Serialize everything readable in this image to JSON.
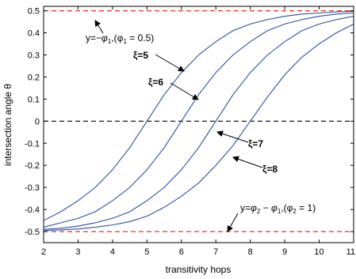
{
  "chart_data": {
    "type": "line",
    "xlabel": "transitivity hops",
    "ylabel": "intersection angle θ",
    "xlim": [
      2,
      11
    ],
    "ylim": [
      -0.55,
      0.52
    ],
    "xticks": [
      "2",
      "3",
      "4",
      "5",
      "6",
      "7",
      "8",
      "9",
      "10",
      "11"
    ],
    "yticks": [
      "0.5",
      "0.4",
      "0.3",
      "0.2",
      "0.1",
      "0",
      "-0.1",
      "-0.2",
      "-0.3",
      "-0.4",
      "-0.5"
    ],
    "grid": false,
    "line_color": "#2b4f9e",
    "series": [
      {
        "name": "ξ=5",
        "x": [
          2,
          2.5,
          3,
          3.5,
          4,
          4.5,
          5,
          5.5,
          6,
          6.5,
          7,
          7.5,
          8,
          8.5,
          9,
          9.5,
          10,
          10.5,
          11
        ],
        "y": [
          -0.45,
          -0.41,
          -0.36,
          -0.3,
          -0.22,
          -0.12,
          0.0,
          0.12,
          0.22,
          0.3,
          0.36,
          0.41,
          0.44,
          0.46,
          0.475,
          0.485,
          0.49,
          0.495,
          0.497
        ]
      },
      {
        "name": "ξ=6",
        "x": [
          2,
          2.5,
          3,
          3.5,
          4,
          4.5,
          5,
          5.5,
          6,
          6.5,
          7,
          7.5,
          8,
          8.5,
          9,
          9.5,
          10,
          10.5,
          11
        ],
        "y": [
          -0.48,
          -0.46,
          -0.44,
          -0.41,
          -0.36,
          -0.3,
          -0.22,
          -0.12,
          0.0,
          0.12,
          0.22,
          0.3,
          0.36,
          0.41,
          0.44,
          0.46,
          0.475,
          0.485,
          0.49
        ]
      },
      {
        "name": "ξ=7",
        "x": [
          2,
          2.5,
          3,
          3.5,
          4,
          4.5,
          5,
          5.5,
          6,
          6.5,
          7,
          7.5,
          8,
          8.5,
          9,
          9.5,
          10,
          10.5,
          11
        ],
        "y": [
          -0.49,
          -0.485,
          -0.475,
          -0.46,
          -0.44,
          -0.41,
          -0.36,
          -0.3,
          -0.22,
          -0.12,
          0.0,
          0.12,
          0.22,
          0.3,
          0.36,
          0.41,
          0.44,
          0.46,
          0.475
        ]
      },
      {
        "name": "ξ=8",
        "x": [
          2,
          2.5,
          3,
          3.5,
          4,
          4.5,
          5,
          5.5,
          6,
          6.5,
          7,
          7.5,
          8,
          8.5,
          9,
          9.5,
          10,
          10.5,
          11
        ],
        "y": [
          -0.495,
          -0.492,
          -0.488,
          -0.48,
          -0.47,
          -0.455,
          -0.43,
          -0.39,
          -0.34,
          -0.28,
          -0.2,
          -0.11,
          0.0,
          0.11,
          0.21,
          0.29,
          0.35,
          0.4,
          0.44
        ]
      }
    ],
    "reference_lines": [
      {
        "y": 0.5,
        "color": "#e0302a",
        "style": "dashed"
      },
      {
        "y": 0.0,
        "color": "#000000",
        "style": "dashed"
      },
      {
        "y": -0.5,
        "color": "#e0302a",
        "style": "dashed"
      }
    ],
    "annotations": {
      "top_prefix": "y=",
      "top_expr": "−φ",
      "top_expr_sub": "1",
      "top_cond": ",(φ",
      "top_cond_sub": "1",
      "top_cond_end": " = 0.5)",
      "bottom_prefix": "y=",
      "bottom_expr": "φ",
      "bottom_expr_sub1": "2",
      "bottom_expr_mid": " − φ",
      "bottom_expr_sub2": "1",
      "bottom_cond": ",(φ",
      "bottom_cond_sub": "2",
      "bottom_cond_end": " = 1)",
      "curve_labels": [
        "ξ=5",
        "ξ=6",
        "ξ=7",
        "ξ=8"
      ]
    }
  }
}
